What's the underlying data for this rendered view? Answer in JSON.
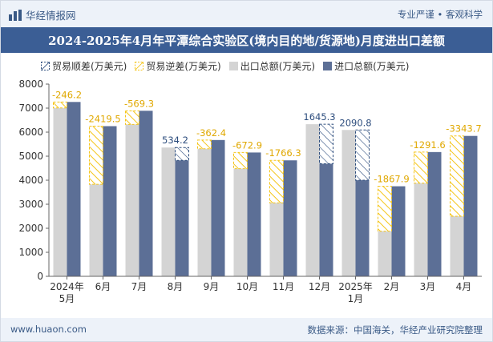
{
  "header": {
    "brand": "华经情报网",
    "tagline": "专业严谨 • 客观科学",
    "title": "2024-2025年4月年平潭综合实验区(境内目的地/货源地)月度进出口差额"
  },
  "footer": {
    "website": "www.huaon.com",
    "source": "数据来源：中国海关，华经产业研究院整理"
  },
  "colors": {
    "surplus": "#f5c518",
    "deficit": "#f5c518",
    "export": "#d4d4d4",
    "import": "#5c6f96",
    "deficit_label": "#e0a800",
    "surplus_label": "#2e4e7e",
    "axis_text": "#333333"
  },
  "chart_data": {
    "type": "bar",
    "title": "2024-2025年4月年平潭综合实验区(境内目的地/货源地)月度进出口差额",
    "categories": [
      [
        "2024年",
        "5月"
      ],
      [
        "6月"
      ],
      [
        "7月"
      ],
      [
        "8月"
      ],
      [
        "9月"
      ],
      [
        "10月"
      ],
      [
        "11月"
      ],
      [
        "12月"
      ],
      [
        "2025年",
        "1月"
      ],
      [
        "2月"
      ],
      [
        "3月"
      ],
      [
        "4月"
      ]
    ],
    "ylim": [
      0,
      8000
    ],
    "yticks": [
      "0",
      "1000",
      "2000",
      "3000",
      "4000",
      "5000",
      "6000",
      "7000",
      "8000"
    ],
    "grid": false,
    "legend_position": "top-left",
    "series": [
      {
        "name": "贸易顺差(万美元)",
        "key": "surplus"
      },
      {
        "name": "贸易逆差(万美元)",
        "key": "deficit"
      },
      {
        "name": "出口总额(万美元)",
        "key": "export",
        "values": [
          7010,
          3830,
          6320,
          5360,
          5310,
          4480,
          3060,
          6330,
          6090,
          1880,
          3880,
          2500
        ]
      },
      {
        "name": "进口总额(万美元)",
        "key": "import",
        "values": [
          7256.2,
          6249.5,
          6889.3,
          4825.8,
          5672.4,
          5152.9,
          4826.3,
          4684.7,
          3999.2,
          3747.9,
          5171.6,
          5843.7
        ]
      }
    ],
    "balance": [
      -246.2,
      -2419.5,
      -569.3,
      534.2,
      -362.4,
      -672.9,
      -1766.3,
      1645.3,
      2090.8,
      -1867.9,
      -1291.6,
      -3343.7
    ],
    "balance_labels": [
      "-246.2",
      "-2419.5",
      "-569.3",
      "534.2",
      "-362.4",
      "-672.9",
      "-1766.3",
      "1645.3",
      "2090.8",
      "-1867.9",
      "-1291.6",
      "-3343.7"
    ]
  }
}
